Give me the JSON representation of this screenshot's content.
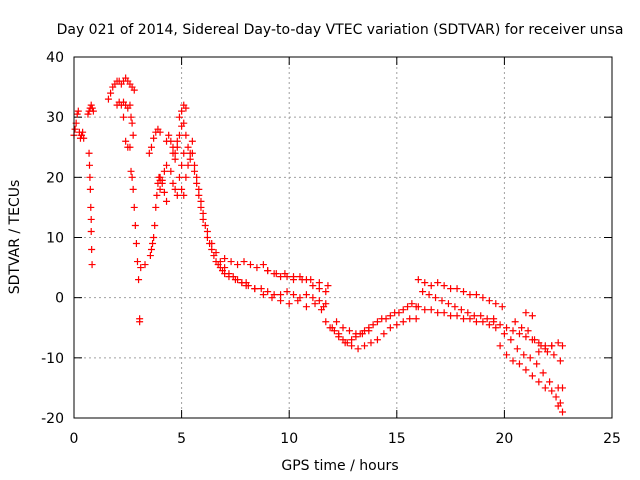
{
  "chart_data": {
    "type": "scatter",
    "title": "Day 021 of 2014, Sidereal Day-to-day VTEC variation (SDTVAR) for receiver unsa",
    "xlabel": "GPS time / hours",
    "ylabel": "SDTVAR / TECUs",
    "xlim": [
      0,
      25
    ],
    "ylim": [
      -20,
      40
    ],
    "xticks": [
      0,
      5,
      10,
      15,
      20,
      25
    ],
    "yticks": [
      -20,
      -10,
      0,
      10,
      20,
      30,
      40
    ],
    "grid": true,
    "marker": "+",
    "color": "#ff0000",
    "series": [
      {
        "name": "SDTVAR",
        "x": [
          0.0,
          0.05,
          0.1,
          0.15,
          0.2,
          0.25,
          0.3,
          0.35,
          0.4,
          0.45,
          0.65,
          0.7,
          0.75,
          0.8,
          0.85,
          0.9,
          0.7,
          0.72,
          0.74,
          0.76,
          0.78,
          0.8,
          0.8,
          0.82,
          0.84,
          1.6,
          1.7,
          1.8,
          1.9,
          2.0,
          2.1,
          2.2,
          2.3,
          2.4,
          2.5,
          2.6,
          2.7,
          2.8,
          2.0,
          2.1,
          2.2,
          2.3,
          2.4,
          2.5,
          2.6,
          2.3,
          2.4,
          2.5,
          2.6,
          2.65,
          2.7,
          2.75,
          2.65,
          2.7,
          2.75,
          2.8,
          2.85,
          2.9,
          2.95,
          3.0,
          3.05,
          3.05,
          3.1,
          3.3,
          3.55,
          3.6,
          3.65,
          3.7,
          3.75,
          3.8,
          3.85,
          3.9,
          3.95,
          4.0,
          3.5,
          3.6,
          3.7,
          3.8,
          3.9,
          4.0,
          4.0,
          4.1,
          4.2,
          4.3,
          4.0,
          4.1,
          4.2,
          4.3,
          4.3,
          4.4,
          4.5,
          4.6,
          4.7,
          4.8,
          4.9,
          5.0,
          5.1,
          5.2,
          5.3,
          5.4,
          4.5,
          4.6,
          4.7,
          4.8,
          4.9,
          5.0,
          5.1,
          4.6,
          4.7,
          4.8,
          4.9,
          5.0,
          5.1,
          5.2,
          5.0,
          5.1,
          5.2,
          5.3,
          5.4,
          5.5,
          5.5,
          5.6,
          5.7,
          5.8,
          5.9,
          6.0,
          6.1,
          6.2,
          6.3,
          6.4,
          6.5,
          6.6,
          6.7,
          6.8,
          6.9,
          7.0,
          5.6,
          5.7,
          5.8,
          5.9,
          6.0,
          6.2,
          6.4,
          6.6,
          6.8,
          7.0,
          7.2,
          7.4,
          7.6,
          7.8,
          8.0,
          7.0,
          7.3,
          7.6,
          7.9,
          8.2,
          8.5,
          8.8,
          9.0,
          9.3,
          9.6,
          9.9,
          10.2,
          10.5,
          10.8,
          11.1,
          11.4,
          11.7,
          7.2,
          7.5,
          7.8,
          8.1,
          8.4,
          8.7,
          9.0,
          9.3,
          9.6,
          9.9,
          10.2,
          10.5,
          10.8,
          11.1,
          11.4,
          11.7,
          8.0,
          8.4,
          8.8,
          9.2,
          9.6,
          10.0,
          10.4,
          10.8,
          11.2,
          11.6,
          9.0,
          9.4,
          9.8,
          10.2,
          10.6,
          11.0,
          11.4,
          11.8,
          11.5,
          11.7,
          11.9,
          12.1,
          12.3,
          12.5,
          12.7,
          12.9,
          13.1,
          13.3,
          13.5,
          13.7,
          13.9,
          14.1,
          14.3,
          14.5,
          14.7,
          14.9,
          15.1,
          15.3,
          15.5,
          15.7,
          15.9,
          12.0,
          12.3,
          12.6,
          12.9,
          13.2,
          13.5,
          13.8,
          14.1,
          14.4,
          14.7,
          15.0,
          15.3,
          15.6,
          15.9,
          12.2,
          12.5,
          12.8,
          13.1,
          13.4,
          13.7,
          16.0,
          16.3,
          16.6,
          16.9,
          17.2,
          17.5,
          17.8,
          18.1,
          18.4,
          18.7,
          19.0,
          19.3,
          19.6,
          19.9,
          16.2,
          16.5,
          16.8,
          17.1,
          17.4,
          17.7,
          18.0,
          18.3,
          18.6,
          18.9,
          19.2,
          19.5,
          16.0,
          16.3,
          16.6,
          16.9,
          17.2,
          17.5,
          17.8,
          18.1,
          18.4,
          18.7,
          19.0,
          19.3,
          19.6,
          19.5,
          19.8,
          20.1,
          20.4,
          20.7,
          21.0,
          21.3,
          21.6,
          21.9,
          22.2,
          22.5,
          22.7,
          19.8,
          20.1,
          20.4,
          20.7,
          21.0,
          21.3,
          21.6,
          21.9,
          22.2,
          22.5,
          22.7,
          20.0,
          20.3,
          20.6,
          20.9,
          21.2,
          21.5,
          21.8,
          22.1,
          22.4,
          22.6,
          20.5,
          20.8,
          21.1,
          21.4,
          21.7,
          22.0,
          22.3,
          22.6,
          21.0,
          21.3,
          21.6,
          21.9,
          22.2,
          22.5,
          22.7
        ],
        "y": [
          27.0,
          28.0,
          29.0,
          30.5,
          31.0,
          27.5,
          26.5,
          27.0,
          27.5,
          26.5,
          30.5,
          31.0,
          31.5,
          32.0,
          31.5,
          31.0,
          24.0,
          22.0,
          20.0,
          18.0,
          15.0,
          13.0,
          11.0,
          8.0,
          5.5,
          33.0,
          34.0,
          35.0,
          35.5,
          36.0,
          36.0,
          35.5,
          36.0,
          36.5,
          36.0,
          35.5,
          35.0,
          34.5,
          32.0,
          32.5,
          32.0,
          32.5,
          32.0,
          31.5,
          32.0,
          30.0,
          26.0,
          25.0,
          25.0,
          30.0,
          29.0,
          27.0,
          21.0,
          20.0,
          18.0,
          15.0,
          12.0,
          9.0,
          6.0,
          3.0,
          -3.5,
          -4.0,
          5.0,
          5.5,
          7.0,
          8.0,
          9.0,
          10.0,
          12.0,
          15.0,
          17.0,
          19.0,
          20.0,
          19.5,
          24.0,
          25.0,
          26.5,
          27.5,
          28.0,
          27.5,
          20.0,
          19.0,
          17.5,
          16.0,
          18.0,
          19.5,
          21.0,
          22.0,
          26.0,
          27.0,
          26.0,
          25.0,
          24.0,
          25.0,
          27.0,
          28.5,
          29.0,
          27.0,
          25.0,
          23.0,
          21.0,
          19.0,
          18.0,
          17.0,
          20.0,
          22.0,
          24.0,
          24.0,
          23.0,
          26.0,
          30.0,
          31.0,
          32.0,
          31.5,
          18.0,
          17.0,
          20.0,
          22.0,
          24.0,
          26.0,
          24.0,
          22.0,
          20.0,
          18.0,
          16.0,
          14.0,
          12.0,
          10.0,
          9.0,
          8.0,
          7.0,
          6.0,
          5.5,
          5.0,
          4.5,
          4.0,
          21.0,
          19.0,
          17.0,
          15.0,
          13.0,
          11.0,
          9.0,
          7.5,
          6.0,
          5.0,
          4.0,
          3.5,
          3.0,
          2.5,
          2.0,
          6.5,
          6.0,
          5.5,
          6.0,
          5.5,
          5.0,
          5.5,
          4.5,
          4.0,
          3.5,
          3.5,
          3.0,
          3.5,
          3.0,
          2.0,
          1.5,
          1.0,
          3.5,
          3.0,
          2.5,
          2.0,
          1.5,
          1.5,
          1.0,
          0.5,
          0.5,
          1.0,
          0.5,
          0.0,
          0.5,
          0.0,
          -0.5,
          -1.0,
          2.5,
          1.5,
          0.5,
          0.0,
          -0.5,
          -1.0,
          -0.5,
          -1.5,
          -1.0,
          -1.5,
          4.5,
          4.0,
          4.0,
          3.5,
          3.0,
          3.0,
          2.5,
          2.0,
          -2.0,
          -4.0,
          -5.0,
          -5.5,
          -6.0,
          -7.0,
          -7.5,
          -7.0,
          -6.5,
          -6.0,
          -5.5,
          -5.0,
          -4.5,
          -4.0,
          -3.5,
          -3.5,
          -3.0,
          -2.5,
          -2.5,
          -2.0,
          -1.5,
          -1.0,
          -1.5,
          -5.0,
          -6.5,
          -7.5,
          -8.0,
          -8.5,
          -8.0,
          -7.5,
          -7.0,
          -6.0,
          -5.0,
          -4.5,
          -4.0,
          -3.5,
          -3.5,
          -4.0,
          -5.0,
          -5.5,
          -6.0,
          -6.0,
          -5.5,
          3.0,
          2.5,
          2.0,
          2.5,
          2.0,
          1.5,
          1.5,
          1.0,
          0.5,
          0.5,
          0.0,
          -0.5,
          -1.0,
          -1.5,
          1.0,
          0.5,
          0.0,
          -0.5,
          -1.0,
          -1.5,
          -2.0,
          -2.5,
          -3.0,
          -3.0,
          -3.5,
          -4.0,
          -1.5,
          -2.0,
          -2.0,
          -2.5,
          -2.5,
          -3.0,
          -3.0,
          -3.5,
          -3.5,
          -4.0,
          -4.0,
          -4.5,
          -5.0,
          -3.5,
          -4.5,
          -5.0,
          -5.5,
          -6.0,
          -6.5,
          -7.0,
          -7.5,
          -8.0,
          -8.0,
          -7.5,
          -8.0,
          -8.0,
          -9.5,
          -10.5,
          -11.0,
          -12.0,
          -13.0,
          -14.0,
          -15.0,
          -15.5,
          -15.0,
          -15.0,
          -6.0,
          -7.0,
          -8.5,
          -9.5,
          -10.0,
          -11.0,
          -12.5,
          -14.0,
          -16.5,
          -17.5,
          -4.0,
          -5.0,
          -5.5,
          -7.0,
          -8.0,
          -9.0,
          -9.5,
          -10.5,
          -2.5,
          -3.0,
          -9.0,
          -8.5,
          -8.0,
          -18.0,
          -19.0
        ]
      }
    ]
  }
}
